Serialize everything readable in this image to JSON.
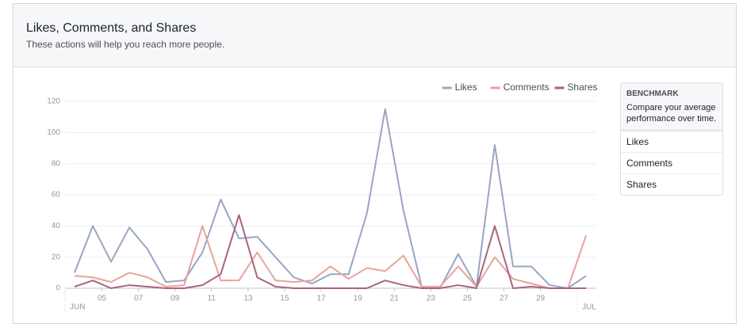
{
  "header": {
    "title": "Likes, Comments, and Shares",
    "subtitle": "These actions will help you reach more people."
  },
  "chart_data": {
    "type": "line",
    "categories": [
      null,
      "05",
      null,
      "07",
      null,
      "09",
      null,
      "11",
      null,
      "13",
      null,
      "15",
      null,
      "17",
      null,
      "19",
      null,
      "21",
      null,
      "23",
      null,
      "25",
      null,
      "27",
      null,
      "29",
      null,
      null,
      null
    ],
    "month_start": "JUN",
    "month_end": "JUL",
    "series": [
      {
        "name": "Likes",
        "color": "#9aa5c3",
        "values": [
          10,
          40,
          17,
          39,
          25,
          4,
          5,
          23,
          57,
          32,
          33,
          20,
          7,
          3,
          9,
          9,
          48,
          115,
          50,
          1,
          0,
          22,
          1,
          92,
          14,
          14,
          2,
          0,
          8
        ]
      },
      {
        "name": "Comments",
        "color": "#e8a39b",
        "values": [
          8,
          7,
          4,
          10,
          7,
          1,
          2,
          40,
          5,
          5,
          23,
          5,
          4,
          5,
          14,
          6,
          13,
          11,
          21,
          1,
          1,
          14,
          1,
          20,
          6,
          3,
          0,
          0,
          34
        ]
      },
      {
        "name": "Shares",
        "color": "#a8647e",
        "values": [
          1,
          5,
          0,
          2,
          1,
          0,
          0,
          2,
          9,
          47,
          7,
          1,
          0,
          0,
          0,
          0,
          0,
          5,
          2,
          0,
          0,
          2,
          0,
          40,
          0,
          1,
          0,
          0,
          0
        ]
      }
    ],
    "ylim": [
      0,
      120
    ],
    "yticks": [
      0,
      20,
      40,
      60,
      80,
      100,
      120
    ],
    "grid": true,
    "legend": "top-right"
  },
  "benchmark": {
    "title": "BENCHMARK",
    "description": "Compare your average performance over time.",
    "items": [
      "Likes",
      "Comments",
      "Shares"
    ]
  }
}
